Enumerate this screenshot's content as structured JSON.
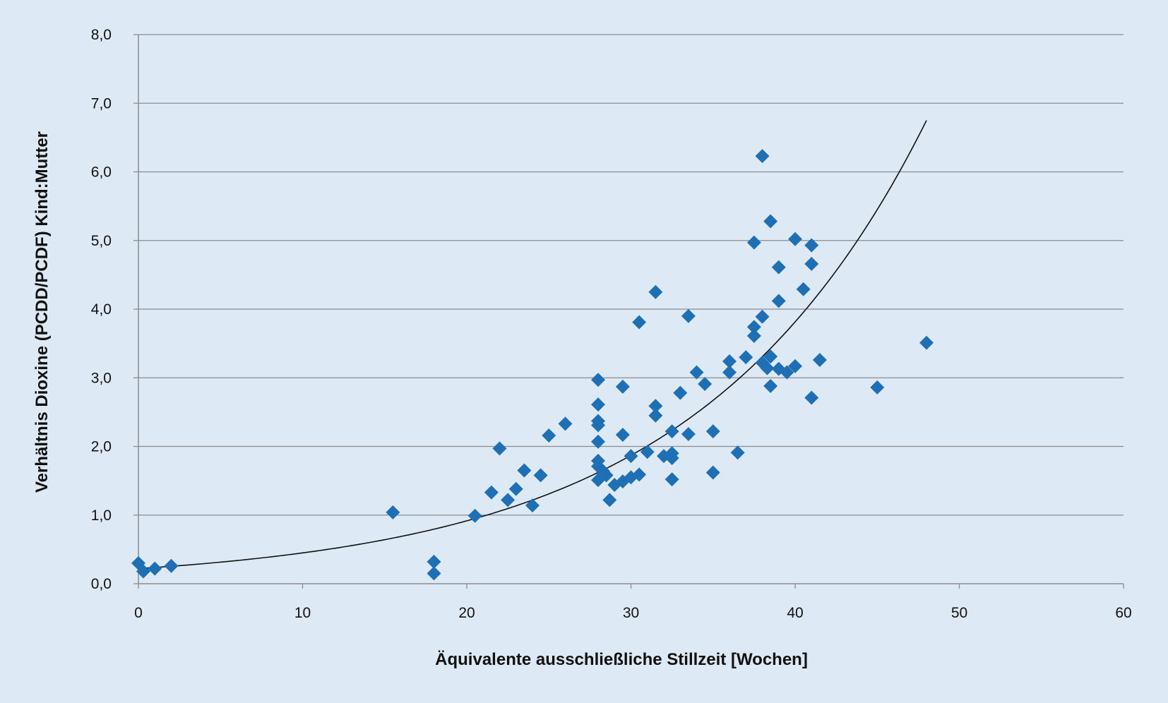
{
  "colors": {
    "background": "#ddeaf6",
    "marker": "#1f6fb5",
    "gridline": "#8c8c8c",
    "trendline": "#111111"
  },
  "chart_data": {
    "type": "scatter",
    "title": "",
    "xlabel": "Äquivalente ausschließliche Stillzeit [Wochen]",
    "ylabel": "Verhältnis Dioxine (PCDD/PCDF) Kind:Mutter",
    "xlim": [
      0,
      60
    ],
    "ylim": [
      0,
      8
    ],
    "x_ticks": [
      "0",
      "10",
      "20",
      "30",
      "40",
      "50",
      "60"
    ],
    "y_ticks": [
      "0,0",
      "1,0",
      "2,0",
      "3,0",
      "4,0",
      "5,0",
      "6,0",
      "7,0",
      "8,0"
    ],
    "grid": "horizontal",
    "marker": "diamond",
    "points": [
      [
        0,
        0.3
      ],
      [
        0.3,
        0.18
      ],
      [
        1,
        0.22
      ],
      [
        2,
        0.26
      ],
      [
        15.5,
        1.04
      ],
      [
        18,
        0.32
      ],
      [
        18,
        0.15
      ],
      [
        20.5,
        0.99
      ],
      [
        21.5,
        1.33
      ],
      [
        22,
        1.97
      ],
      [
        22.5,
        1.22
      ],
      [
        23,
        1.38
      ],
      [
        23.5,
        1.65
      ],
      [
        24,
        1.14
      ],
      [
        24.5,
        1.58
      ],
      [
        25,
        2.16
      ],
      [
        26,
        2.33
      ],
      [
        28,
        2.97
      ],
      [
        28,
        2.61
      ],
      [
        28,
        2.37
      ],
      [
        28,
        2.31
      ],
      [
        28,
        2.07
      ],
      [
        28,
        1.79
      ],
      [
        28,
        1.71
      ],
      [
        28,
        1.51
      ],
      [
        28.3,
        1.64
      ],
      [
        28.5,
        1.58
      ],
      [
        28.7,
        1.22
      ],
      [
        29,
        1.44
      ],
      [
        29.5,
        2.87
      ],
      [
        29.5,
        2.17
      ],
      [
        29.5,
        1.49
      ],
      [
        30,
        1.86
      ],
      [
        30,
        1.55
      ],
      [
        30.5,
        3.81
      ],
      [
        30.5,
        1.59
      ],
      [
        31,
        1.92
      ],
      [
        31.5,
        4.25
      ],
      [
        31.5,
        2.59
      ],
      [
        31.5,
        2.45
      ],
      [
        32,
        1.86
      ],
      [
        32.5,
        2.22
      ],
      [
        32.5,
        1.9
      ],
      [
        32.5,
        1.83
      ],
      [
        32.5,
        1.52
      ],
      [
        33,
        2.78
      ],
      [
        33.5,
        3.9
      ],
      [
        33.5,
        2.18
      ],
      [
        34,
        3.08
      ],
      [
        34.5,
        2.91
      ],
      [
        35,
        2.22
      ],
      [
        35,
        1.62
      ],
      [
        36,
        3.24
      ],
      [
        36,
        3.08
      ],
      [
        36.5,
        1.91
      ],
      [
        37,
        3.3
      ],
      [
        37.5,
        4.97
      ],
      [
        37.5,
        3.74
      ],
      [
        37.5,
        3.61
      ],
      [
        38,
        6.23
      ],
      [
        38,
        3.89
      ],
      [
        38,
        3.22
      ],
      [
        38.3,
        3.14
      ],
      [
        38.5,
        5.28
      ],
      [
        38.5,
        3.31
      ],
      [
        38.5,
        2.88
      ],
      [
        39,
        4.61
      ],
      [
        39,
        4.12
      ],
      [
        39,
        3.13
      ],
      [
        39.5,
        3.08
      ],
      [
        40,
        5.02
      ],
      [
        40,
        3.17
      ],
      [
        40.5,
        4.29
      ],
      [
        41,
        4.93
      ],
      [
        41,
        4.66
      ],
      [
        41,
        2.71
      ],
      [
        41.5,
        3.26
      ],
      [
        45,
        2.86
      ],
      [
        48,
        3.51
      ]
    ],
    "trendline": {
      "type": "exponential",
      "x_range": [
        0,
        48
      ],
      "y_start": 0.22,
      "y_end": 6.75
    }
  }
}
